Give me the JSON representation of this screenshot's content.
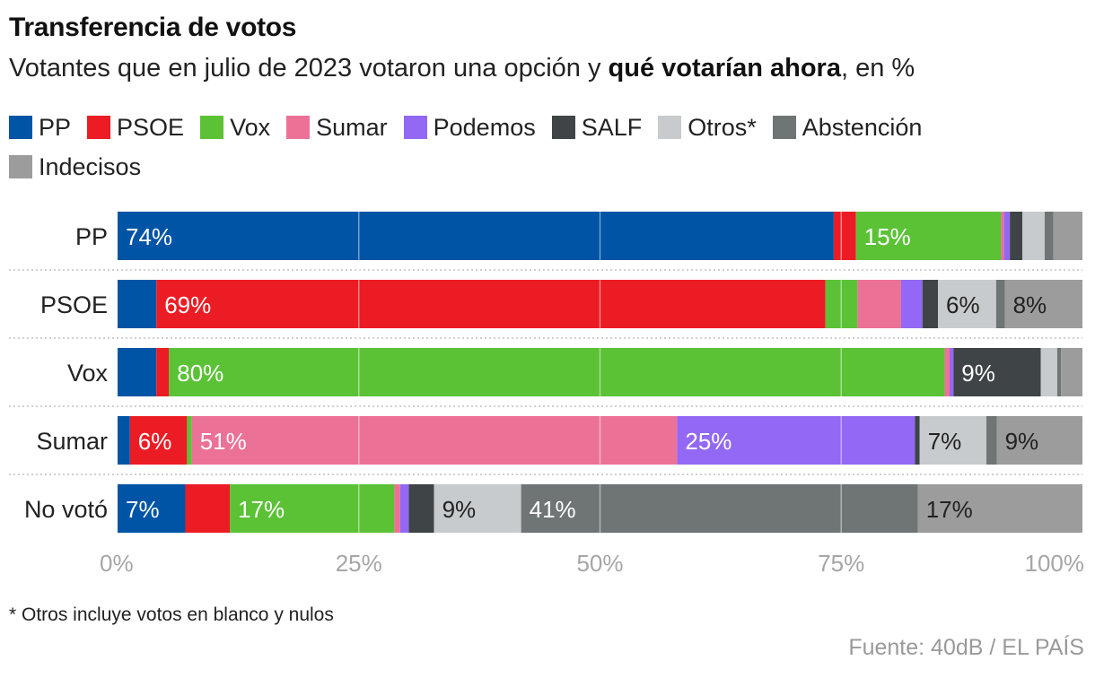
{
  "header": {
    "title": "Transferencia de votos",
    "subtitle_pre": "Votantes que en julio de 2023 votaron una opción y ",
    "subtitle_bold": "qué votarían ahora",
    "subtitle_post": ", en %"
  },
  "legend": [
    {
      "label": "PP",
      "color": "#0054a6"
    },
    {
      "label": "PSOE",
      "color": "#ec1c24"
    },
    {
      "label": "Vox",
      "color": "#5bc236"
    },
    {
      "label": "Sumar",
      "color": "#ec7196"
    },
    {
      "label": "Podemos",
      "color": "#9268f4"
    },
    {
      "label": "SALF",
      "color": "#3f4447"
    },
    {
      "label": "Otros*",
      "color": "#c7cbcd"
    },
    {
      "label": "Abstención",
      "color": "#6e7574"
    },
    {
      "label": "Indecisos",
      "color": "#9c9c9c"
    }
  ],
  "chart_data": {
    "type": "bar",
    "orientation": "horizontal",
    "stacked": true,
    "title": "Transferencia de votos",
    "xlabel": "",
    "ylabel": "",
    "xlim": [
      0,
      100
    ],
    "xticks": [
      "0%",
      "25%",
      "50%",
      "75%",
      "100%"
    ],
    "categories": [
      "PP",
      "PSOE",
      "Vox",
      "Sumar",
      "No votó"
    ],
    "series": [
      {
        "name": "PP",
        "color": "#0054a6",
        "values": [
          74,
          4,
          4,
          1.3,
          7
        ]
      },
      {
        "name": "PSOE",
        "color": "#ec1c24",
        "values": [
          2.3,
          69,
          1.3,
          6,
          4.6
        ]
      },
      {
        "name": "Vox",
        "color": "#5bc236",
        "values": [
          15,
          3.3,
          80,
          0.5,
          17
        ]
      },
      {
        "name": "Sumar",
        "color": "#ec7196",
        "values": [
          0.3,
          4.5,
          0.5,
          51,
          0.6
        ]
      },
      {
        "name": "Podemos",
        "color": "#9268f4",
        "values": [
          0.6,
          2.2,
          0.4,
          25,
          0.9
        ]
      },
      {
        "name": "SALF",
        "color": "#3f4447",
        "values": [
          1.3,
          1.6,
          9,
          0.5,
          2.6
        ]
      },
      {
        "name": "Otros*",
        "color": "#c7cbcd",
        "values": [
          2.3,
          6,
          1.7,
          7,
          9
        ]
      },
      {
        "name": "Abstención",
        "color": "#6e7574",
        "values": [
          0.9,
          0.9,
          0.4,
          1.1,
          41
        ]
      },
      {
        "name": "Indecisos",
        "color": "#9c9c9c",
        "values": [
          3,
          8,
          2.2,
          9,
          17
        ]
      }
    ],
    "data_labels": [
      {
        "row": 0,
        "series": 0,
        "text": "74%"
      },
      {
        "row": 0,
        "series": 2,
        "text": "15%"
      },
      {
        "row": 1,
        "series": 1,
        "text": "69%"
      },
      {
        "row": 1,
        "series": 6,
        "text": "6%"
      },
      {
        "row": 1,
        "series": 8,
        "text": "8%"
      },
      {
        "row": 2,
        "series": 2,
        "text": "80%"
      },
      {
        "row": 2,
        "series": 5,
        "text": "9%"
      },
      {
        "row": 3,
        "series": 1,
        "text": "6%"
      },
      {
        "row": 3,
        "series": 3,
        "text": "51%"
      },
      {
        "row": 3,
        "series": 4,
        "text": "25%"
      },
      {
        "row": 3,
        "series": 6,
        "text": "7%"
      },
      {
        "row": 3,
        "series": 8,
        "text": "9%"
      },
      {
        "row": 4,
        "series": 0,
        "text": "7%"
      },
      {
        "row": 4,
        "series": 2,
        "text": "17%"
      },
      {
        "row": 4,
        "series": 6,
        "text": "9%"
      },
      {
        "row": 4,
        "series": 7,
        "text": "41%"
      },
      {
        "row": 4,
        "series": 8,
        "text": "17%"
      }
    ]
  },
  "footer": {
    "footnote": "* Otros incluye votos en blanco y nulos",
    "source": "Fuente: 40dB / EL PAÍS"
  }
}
